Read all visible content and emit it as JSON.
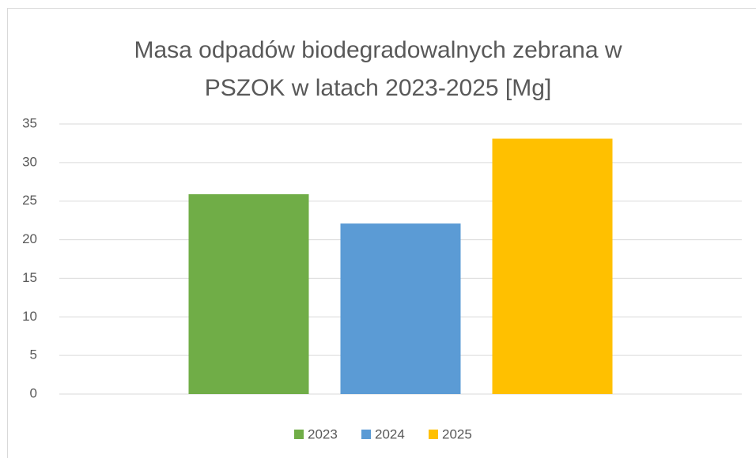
{
  "chart_data": {
    "type": "bar",
    "title": "Masa odpadów biodegradowalnych zebrana w PSZOK w latach 2023-2025 [Mg]",
    "categories": [
      null
    ],
    "series": [
      {
        "name": "2023",
        "color": "#70ad47",
        "values": [
          25.9
        ]
      },
      {
        "name": "2024",
        "color": "#5b9bd5",
        "values": [
          22.1
        ]
      },
      {
        "name": "2025",
        "color": "#ffc000",
        "values": [
          33.1
        ]
      }
    ],
    "ylim": [
      0,
      35
    ],
    "yticks": [
      0,
      5,
      10,
      15,
      20,
      25,
      30,
      35
    ],
    "grid": true,
    "legend": "bottom"
  }
}
